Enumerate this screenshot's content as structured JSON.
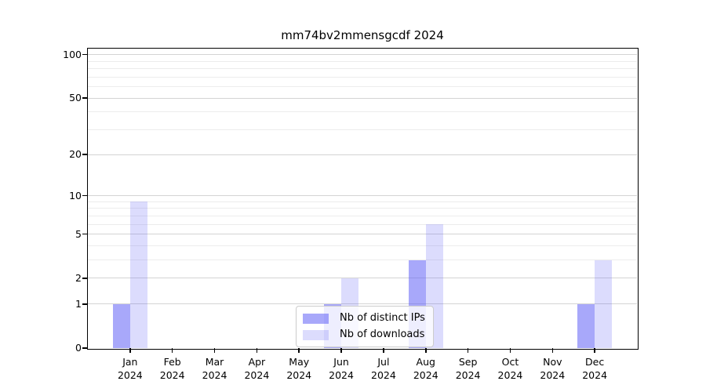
{
  "chart_data": {
    "type": "bar",
    "title": "mm74bv2mmensgcdf 2024",
    "categories": [
      "Jan",
      "Feb",
      "Mar",
      "Apr",
      "May",
      "Jun",
      "Jul",
      "Aug",
      "Sep",
      "Oct",
      "Nov",
      "Dec"
    ],
    "x_year": "2024",
    "series": [
      {
        "name": "Nb of distinct IPs",
        "values": [
          1,
          0,
          0,
          0,
          0,
          1,
          0,
          3,
          0,
          0,
          0,
          1
        ],
        "color": "rgba(90,90,245,0.53)"
      },
      {
        "name": "Nb of downloads",
        "values": [
          9,
          0,
          0,
          0,
          0,
          2,
          0,
          6,
          0,
          0,
          0,
          3
        ],
        "color": "rgba(90,90,245,0.21)"
      }
    ],
    "xlabel": "",
    "ylabel": "",
    "yscale": "log1p",
    "ylim": [
      0,
      110
    ],
    "y_ticks": [
      0,
      1,
      2,
      5,
      10,
      20,
      50,
      100
    ],
    "y_minor_gridlines": [
      3,
      4,
      6,
      7,
      8,
      9,
      30,
      40,
      60,
      70,
      80,
      90
    ],
    "grid": true,
    "legend_position": "lower center",
    "colors": {
      "major_grid": "#d4d4d4",
      "minor_grid": "#ececec",
      "axis": "#000000",
      "text": "#000000",
      "legend_border": "#cccccc",
      "legend_bg": "rgba(255,255,255,0.8)"
    }
  }
}
